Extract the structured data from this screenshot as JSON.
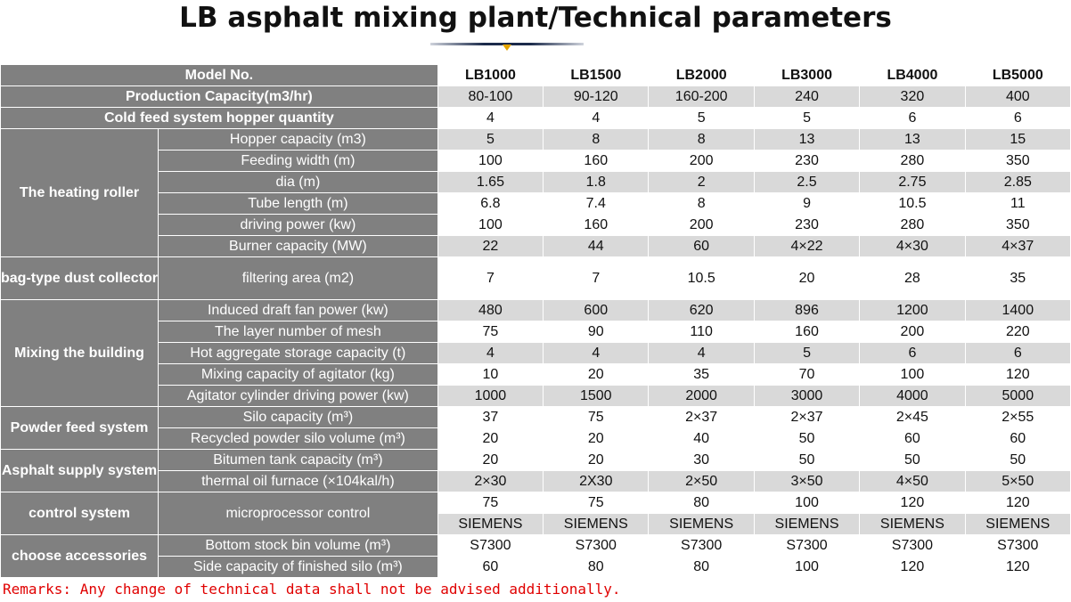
{
  "title": "LB asphalt mixing plant/Technical parameters",
  "header": {
    "label": "Model No.",
    "models": [
      "LB1000",
      "LB1500",
      "LB2000",
      "LB3000",
      "LB4000",
      "LB5000"
    ]
  },
  "rows": [
    {
      "label": "Production Capacity(m3/hr)",
      "values": [
        "80-100",
        "90-120",
        "160-200",
        "240",
        "320",
        "400"
      ]
    },
    {
      "label": "Cold feed system hopper quantity",
      "values": [
        "4",
        "4",
        "5",
        "5",
        "6",
        "6"
      ]
    },
    {
      "group": "The heating roller",
      "label": "Hopper capacity (m3)",
      "values": [
        "5",
        "8",
        "8",
        "13",
        "13",
        "15"
      ]
    },
    {
      "label": "Feeding width (m)",
      "values": [
        "100",
        "160",
        "200",
        "230",
        "280",
        "350"
      ]
    },
    {
      "label": "dia (m)",
      "values": [
        "1.65",
        "1.8",
        "2",
        "2.5",
        "2.75",
        "2.85"
      ]
    },
    {
      "label": "Tube length (m)",
      "values": [
        "6.8",
        "7.4",
        "8",
        "9",
        "10.5",
        "11"
      ]
    },
    {
      "label": "driving power (kw)",
      "values": [
        "100",
        "160",
        "200",
        "230",
        "280",
        "350"
      ]
    },
    {
      "label": "Burner capacity (MW)",
      "values": [
        "22",
        "44",
        "60",
        "4×22",
        "4×30",
        "4×37"
      ]
    },
    {
      "group": "bag-type dust collector",
      "label": "filtering area (m2)",
      "values": [
        "7",
        "7",
        "10.5",
        "20",
        "28",
        "35"
      ]
    },
    {
      "group": "Mixing the building",
      "label": "Induced draft fan power (kw)",
      "values": [
        "480",
        "600",
        "620",
        "896",
        "1200",
        "1400"
      ]
    },
    {
      "label": "The layer number of mesh",
      "values": [
        "75",
        "90",
        "110",
        "160",
        "200",
        "220"
      ]
    },
    {
      "label": "Hot aggregate storage capacity (t)",
      "values": [
        "4",
        "4",
        "4",
        "5",
        "6",
        "6"
      ]
    },
    {
      "label": "Mixing capacity of agitator (kg)",
      "values": [
        "10",
        "20",
        "35",
        "70",
        "100",
        "120"
      ]
    },
    {
      "label": "Agitator cylinder driving power (kw)",
      "values": [
        "1000",
        "1500",
        "2000",
        "3000",
        "4000",
        "5000"
      ]
    },
    {
      "group": "Powder feed system",
      "label": "Silo capacity (m³)",
      "values": [
        "37",
        "75",
        "2×37",
        "2×37",
        "2×45",
        "2×55"
      ]
    },
    {
      "label": "Recycled powder silo volume (m³)",
      "values": [
        "20",
        "20",
        "40",
        "50",
        "60",
        "60"
      ]
    },
    {
      "group": "Asphalt supply system",
      "label": "Bitumen tank capacity (m³)",
      "values": [
        "20",
        "20",
        "30",
        "50",
        "50",
        "50"
      ]
    },
    {
      "label": "thermal oil furnace (×104kal/h)",
      "values": [
        "2×30",
        "2X30",
        "2×50",
        "3×50",
        "4×50",
        "5×50"
      ]
    },
    {
      "group": "control system",
      "label": "microprocessor control",
      "values": [
        "75",
        "75",
        "80",
        "100",
        "120",
        "120"
      ]
    },
    {
      "values": [
        "SIEMENS",
        "SIEMENS",
        "SIEMENS",
        "SIEMENS",
        "SIEMENS",
        "SIEMENS"
      ]
    },
    {
      "group": "choose accessories",
      "label": "Bottom stock bin volume (m³)",
      "values": [
        "S7300",
        "S7300",
        "S7300",
        "S7300",
        "S7300",
        "S7300"
      ]
    },
    {
      "label": "Side capacity of finished silo (m³)",
      "values": [
        "60",
        "80",
        "80",
        "100",
        "120",
        "120"
      ]
    }
  ],
  "remarks": "Remarks: Any change of technical data shall not be advised additionally."
}
